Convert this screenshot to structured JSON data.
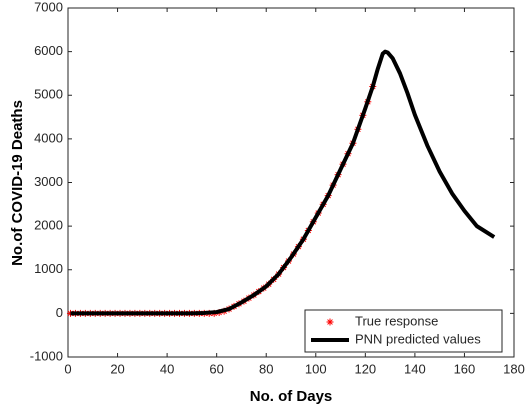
{
  "chart_data": {
    "type": "line",
    "xlabel": "No. of Days",
    "ylabel": "No.of COVID-19 Deaths",
    "xlim": [
      0,
      180
    ],
    "xticks": [
      0,
      20,
      40,
      60,
      80,
      100,
      120,
      140,
      160,
      180
    ],
    "ylim": [
      -1000,
      7000
    ],
    "yticks": [
      -1000,
      0,
      1000,
      2000,
      3000,
      4000,
      5000,
      6000,
      7000
    ],
    "legend": "lower right",
    "series": [
      {
        "name": "True response",
        "color": "#ff0000",
        "mode": "markers",
        "x": [
          1,
          3,
          5,
          7,
          9,
          11,
          13,
          15,
          17,
          19,
          21,
          23,
          25,
          27,
          29,
          31,
          33,
          35,
          37,
          39,
          41,
          43,
          45,
          47,
          49,
          51,
          53,
          55,
          57,
          59,
          61,
          63,
          65,
          67,
          69,
          71,
          73,
          75,
          77,
          79,
          81,
          83,
          85,
          87,
          89,
          91,
          93,
          95,
          97,
          99,
          101,
          103,
          105,
          107,
          109,
          111,
          113,
          115,
          117,
          119,
          121,
          123
        ],
        "values": [
          0,
          0,
          0,
          0,
          0,
          0,
          0,
          0,
          0,
          0,
          0,
          0,
          0,
          0,
          0,
          0,
          0,
          0,
          0,
          0,
          0,
          0,
          0,
          0,
          0,
          0,
          0,
          0,
          0,
          0,
          20,
          50,
          100,
          160,
          220,
          280,
          350,
          420,
          500,
          580,
          670,
          780,
          900,
          1050,
          1200,
          1360,
          1530,
          1700,
          1900,
          2100,
          2300,
          2500,
          2700,
          2940,
          3180,
          3420,
          3660,
          3900,
          4220,
          4540,
          4850,
          5200
        ]
      },
      {
        "name": "PNN predicted values",
        "color": "#000000",
        "mode": "lines",
        "x": [
          1,
          10,
          20,
          30,
          40,
          50,
          55,
          60,
          65,
          70,
          75,
          80,
          85,
          90,
          95,
          100,
          105,
          110,
          115,
          120,
          123,
          125,
          127,
          128,
          129,
          131,
          134,
          137,
          140,
          145,
          150,
          155,
          160,
          165,
          172
        ],
        "values": [
          0,
          0,
          0,
          0,
          0,
          0,
          10,
          30,
          100,
          250,
          420,
          620,
          900,
          1280,
          1700,
          2200,
          2700,
          3300,
          3900,
          4700,
          5200,
          5600,
          5950,
          6000,
          5980,
          5850,
          5500,
          5050,
          4550,
          3850,
          3250,
          2750,
          2350,
          2000,
          1750
        ]
      }
    ]
  }
}
